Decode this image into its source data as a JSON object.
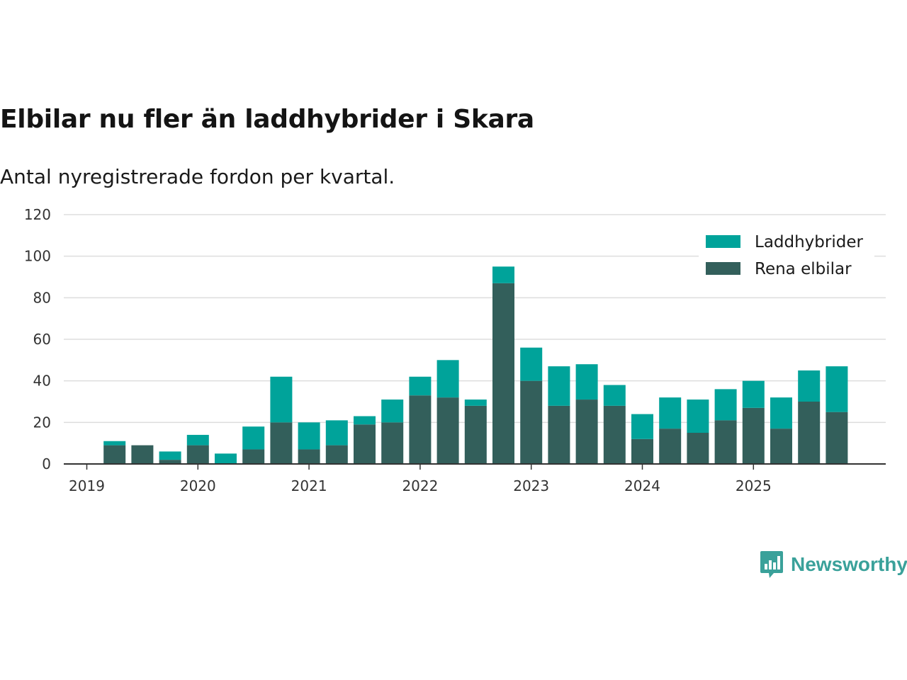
{
  "title": "Elbilar nu fler än laddhybrider i Skara",
  "subtitle": "Antal nyregistrerade fordon per kvartal.",
  "brand": {
    "name": "Newsworthy",
    "icon": "newsworthy-logo-icon"
  },
  "colors": {
    "laddhybrider": "#00a39a",
    "elbilar": "#335f5b",
    "grid": "#dddddd",
    "axis": "#333333"
  },
  "chart_data": {
    "type": "bar",
    "stacked": true,
    "title": "Elbilar nu fler än laddhybrider i Skara",
    "subtitle": "Antal nyregistrerade fordon per kvartal.",
    "xlabel": "",
    "ylabel": "",
    "ylim": [
      0,
      120
    ],
    "yticks": [
      "0",
      "20",
      "40",
      "60",
      "80",
      "100",
      "120"
    ],
    "xticks": [
      "2019",
      "2020",
      "2021",
      "2022",
      "2023",
      "2024",
      "2025"
    ],
    "categories": [
      "2019 Q1",
      "2019 Q2",
      "2019 Q3",
      "2019 Q4",
      "2020 Q1",
      "2020 Q2",
      "2020 Q3",
      "2020 Q4",
      "2021 Q1",
      "2021 Q2",
      "2021 Q3",
      "2021 Q4",
      "2022 Q1",
      "2022 Q2",
      "2022 Q3",
      "2022 Q4",
      "2023 Q1",
      "2023 Q2",
      "2023 Q3",
      "2023 Q4",
      "2024 Q1",
      "2024 Q2",
      "2024 Q3",
      "2024 Q4",
      "2025 Q1",
      "2025 Q2",
      "2025 Q3",
      "2025 Q4"
    ],
    "series": [
      {
        "name": "Rena elbilar",
        "values": [
          0,
          9,
          9,
          2,
          9,
          0,
          7,
          20,
          7,
          9,
          19,
          20,
          33,
          32,
          28,
          87,
          40,
          28,
          31,
          28,
          12,
          17,
          15,
          21,
          27,
          17,
          30,
          25
        ]
      },
      {
        "name": "Laddhybrider",
        "values": [
          0,
          2,
          0,
          4,
          5,
          5,
          11,
          22,
          13,
          12,
          4,
          11,
          9,
          18,
          3,
          8,
          16,
          19,
          17,
          10,
          12,
          15,
          16,
          15,
          13,
          15,
          15,
          22
        ]
      }
    ],
    "legend": {
      "position": "top-right",
      "entries": [
        "Laddhybrider",
        "Rena elbilar"
      ]
    }
  }
}
